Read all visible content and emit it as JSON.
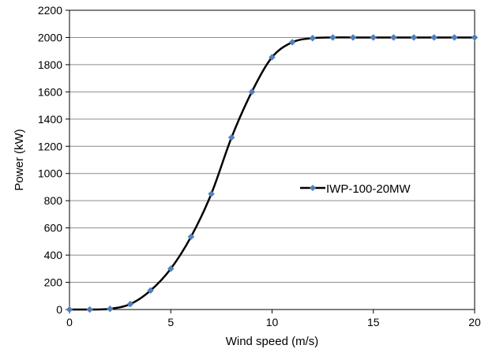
{
  "chart_data": {
    "type": "line",
    "title": "",
    "xlabel": "Wind speed (m/s)",
    "ylabel": "Power (kW)",
    "xlim": [
      0,
      20
    ],
    "ylim": [
      0,
      2200
    ],
    "x_ticks": [
      0,
      5,
      10,
      15,
      20
    ],
    "y_ticks": [
      0,
      200,
      400,
      600,
      800,
      1000,
      1200,
      1400,
      1600,
      1800,
      2000,
      2200
    ],
    "grid": "horizontal",
    "legend_position": "center-right",
    "series": [
      {
        "name": "IWP-100-20MW",
        "line_color": "#000000",
        "marker_color": "#4F81BD",
        "marker": "diamond",
        "x": [
          0,
          1,
          2,
          3,
          4,
          5,
          6,
          7,
          8,
          9,
          10,
          11,
          12,
          13,
          14,
          15,
          16,
          17,
          18,
          19,
          20
        ],
        "y": [
          0,
          0,
          5,
          40,
          140,
          300,
          535,
          850,
          1265,
          1600,
          1855,
          1965,
          1995,
          2000,
          2000,
          2000,
          2000,
          2000,
          2000,
          2000,
          2000
        ]
      }
    ]
  }
}
